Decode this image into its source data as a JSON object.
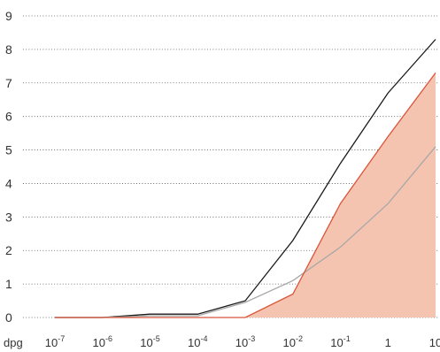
{
  "chart_data": {
    "type": "line",
    "xlabel": "dpg",
    "x_scale": "log",
    "x_ticks": [
      {
        "value": 1e-07,
        "base": "10",
        "exp": "-7"
      },
      {
        "value": 1e-06,
        "base": "10",
        "exp": "-6"
      },
      {
        "value": 1e-05,
        "base": "10",
        "exp": "-5"
      },
      {
        "value": 0.0001,
        "base": "10",
        "exp": "-4"
      },
      {
        "value": 0.001,
        "base": "10",
        "exp": "-3"
      },
      {
        "value": 0.01,
        "base": "10",
        "exp": "-2"
      },
      {
        "value": 0.1,
        "base": "10",
        "exp": "-1"
      },
      {
        "value": 1,
        "base": "1",
        "exp": ""
      },
      {
        "value": 10,
        "base": "10",
        "exp": ""
      }
    ],
    "y_ticks": [
      "0",
      "1",
      "2",
      "3",
      "4",
      "5",
      "6",
      "7",
      "8",
      "9"
    ],
    "ylim": [
      0,
      9
    ],
    "grid": "horizontal-dotted",
    "x": [
      1e-07,
      1e-06,
      1e-05,
      0.0001,
      0.001,
      0.01,
      0.1,
      1,
      10
    ],
    "series": [
      {
        "style": "line",
        "color": "#1a1a1a",
        "values": [
          0,
          0,
          0.1,
          0.1,
          0.5,
          2.3,
          4.6,
          6.7,
          8.3
        ]
      },
      {
        "style": "line",
        "color": "#a8a8a8",
        "values": [
          0,
          0,
          0.05,
          0.05,
          0.45,
          1.1,
          2.1,
          3.4,
          5.1
        ]
      },
      {
        "style": "area",
        "color": "#d9553a",
        "fill": "#f5c4b0",
        "values": [
          0,
          0,
          0,
          0,
          0,
          0.7,
          3.4,
          5.4,
          7.3
        ]
      }
    ]
  }
}
